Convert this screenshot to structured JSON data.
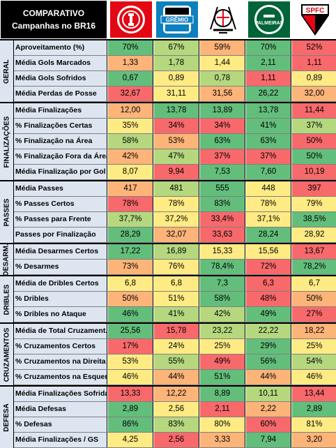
{
  "header": {
    "title_line1": "COMPARATIVO",
    "title_line2": "Campanhas no BR16",
    "teams": [
      {
        "icon": "internacional-crest-icon",
        "text": "",
        "color": "#e30613"
      },
      {
        "icon": "gremio-crest-icon",
        "text": "GRÊMIO",
        "color": "#0d80bf"
      },
      {
        "icon": "corinthians-crest-icon",
        "text": "",
        "color": "#000000"
      },
      {
        "icon": "palmeiras-crest-icon",
        "text": "PALMEIRAS",
        "color": "#006437"
      },
      {
        "icon": "saopaulo-crest-icon",
        "text": "SPFC",
        "color": "#e30613"
      }
    ]
  },
  "colors": {
    "green": "#63be7b",
    "light_green": "#b5d87f",
    "yellow": "#ffeb84",
    "orange": "#fcb479",
    "red": "#f8696b",
    "label_bg": "#dde6f0"
  },
  "sections": [
    {
      "label": "GERAL",
      "rows": [
        {
          "label": "Aproveitamento (%)",
          "values": [
            "70%",
            "67%",
            "59%",
            "70%",
            "52%"
          ],
          "shades": [
            "green",
            "light_green",
            "orange",
            "green",
            "red"
          ]
        },
        {
          "label": "Média Gols Marcados",
          "values": [
            "1,33",
            "1,78",
            "1,44",
            "2,11",
            "1,11"
          ],
          "shades": [
            "orange",
            "light_green",
            "yellow",
            "green",
            "red"
          ]
        },
        {
          "label": "Média Gols Sofridos",
          "values": [
            "0,67",
            "0,89",
            "0,78",
            "1,11",
            "0,89"
          ],
          "shades": [
            "green",
            "yellow",
            "light_green",
            "red",
            "yellow"
          ]
        },
        {
          "label": "Média Perdas de Posse",
          "values": [
            "32,67",
            "31,11",
            "31,56",
            "26,22",
            "32,00"
          ],
          "shades": [
            "red",
            "yellow",
            "orange",
            "green",
            "orange"
          ]
        }
      ]
    },
    {
      "label": "FINALIZAÇÕES",
      "rows": [
        {
          "label": "Média Finalizações",
          "values": [
            "12,00",
            "13,78",
            "13,89",
            "13,78",
            "11,44"
          ],
          "shades": [
            "orange",
            "green",
            "green",
            "green",
            "red"
          ]
        },
        {
          "label": "% Finalizações Certas",
          "values": [
            "35%",
            "34%",
            "34%",
            "41%",
            "37%"
          ],
          "shades": [
            "yellow",
            "red",
            "red",
            "green",
            "light_green"
          ]
        },
        {
          "label": "% Finalização na Área",
          "values": [
            "58%",
            "53%",
            "63%",
            "63%",
            "50%"
          ],
          "shades": [
            "light_green",
            "orange",
            "green",
            "green",
            "red"
          ]
        },
        {
          "label": "% Finalização Fora da Área",
          "values": [
            "42%",
            "47%",
            "37%",
            "37%",
            "50%"
          ],
          "shades": [
            "orange",
            "light_green",
            "red",
            "red",
            "green"
          ]
        },
        {
          "label": "Média Finalização por Gol",
          "values": [
            "8,07",
            "9,94",
            "7,53",
            "7,60",
            "10,19"
          ],
          "shades": [
            "yellow",
            "red",
            "green",
            "green",
            "red"
          ]
        }
      ]
    },
    {
      "label": "PASSES",
      "rows": [
        {
          "label": "Média Passes",
          "values": [
            "417",
            "481",
            "555",
            "448",
            "397"
          ],
          "shades": [
            "orange",
            "light_green",
            "green",
            "yellow",
            "red"
          ]
        },
        {
          "label": "% Passes Certos",
          "values": [
            "78%",
            "78%",
            "83%",
            "78%",
            "79%"
          ],
          "shades": [
            "red",
            "yellow",
            "green",
            "yellow",
            "yellow"
          ]
        },
        {
          "label": "% Passes para Frente",
          "values": [
            "37,7%",
            "37,2%",
            "33,4%",
            "37,1%",
            "38,5%"
          ],
          "shades": [
            "light_green",
            "yellow",
            "red",
            "yellow",
            "green"
          ]
        },
        {
          "label": "Passes por Finalização",
          "values": [
            "28,29",
            "32,07",
            "33,63",
            "28,24",
            "28,92"
          ],
          "shades": [
            "green",
            "orange",
            "red",
            "green",
            "yellow"
          ]
        }
      ]
    },
    {
      "label": "DESARM.",
      "rows": [
        {
          "label": "Média Desarmes Certos",
          "values": [
            "17,22",
            "16,89",
            "15,33",
            "15,56",
            "13,67"
          ],
          "shades": [
            "green",
            "light_green",
            "yellow",
            "yellow",
            "red"
          ]
        },
        {
          "label": "% Desarmes",
          "values": [
            "73%",
            "76%",
            "78,4%",
            "72%",
            "78,2%"
          ],
          "shades": [
            "orange",
            "yellow",
            "green",
            "red",
            "green"
          ]
        }
      ]
    },
    {
      "label": "DRIBLES",
      "rows": [
        {
          "label": "Média de Dribles Certos",
          "values": [
            "6,8",
            "6,8",
            "7,3",
            "6,3",
            "6,7"
          ],
          "shades": [
            "yellow",
            "yellow",
            "green",
            "red",
            "yellow"
          ]
        },
        {
          "label": "% Dribles",
          "values": [
            "50%",
            "51%",
            "58%",
            "48%",
            "50%"
          ],
          "shades": [
            "orange",
            "yellow",
            "green",
            "red",
            "orange"
          ]
        },
        {
          "label": "% Dribles no Ataque",
          "values": [
            "46%",
            "41%",
            "42%",
            "49%",
            "27%"
          ],
          "shades": [
            "green",
            "light_green",
            "light_green",
            "green",
            "red"
          ]
        }
      ]
    },
    {
      "label": "CRUZAMENTOS",
      "rows": [
        {
          "label": "Média de Total Cruzament.",
          "values": [
            "25,56",
            "15,78",
            "23,22",
            "22,22",
            "18,22"
          ],
          "shades": [
            "green",
            "red",
            "light_green",
            "light_green",
            "orange"
          ]
        },
        {
          "label": "% Cruzamentos Certos",
          "values": [
            "17%",
            "24%",
            "25%",
            "29%",
            "25%"
          ],
          "shades": [
            "red",
            "yellow",
            "yellow",
            "green",
            "yellow"
          ]
        },
        {
          "label": "% Cruzamentos na Direita",
          "values": [
            "53%",
            "55%",
            "49%",
            "56%",
            "54%"
          ],
          "shades": [
            "yellow",
            "light_green",
            "red",
            "green",
            "light_green"
          ]
        },
        {
          "label": "% Cruzamentos na Esquerda",
          "values": [
            "46%",
            "44%",
            "51%",
            "44%",
            "46%"
          ],
          "shades": [
            "yellow",
            "orange",
            "green",
            "orange",
            "yellow"
          ]
        }
      ]
    },
    {
      "label": "DEFESA",
      "rows": [
        {
          "label": "Média Finalizações Sofridas",
          "values": [
            "13,33",
            "12,22",
            "8,89",
            "10,11",
            "13,44"
          ],
          "shades": [
            "red",
            "orange",
            "green",
            "light_green",
            "red"
          ]
        },
        {
          "label": "Média Defesas",
          "values": [
            "2,89",
            "2,56",
            "2,11",
            "2,22",
            "2,89"
          ],
          "shades": [
            "green",
            "yellow",
            "red",
            "orange",
            "green"
          ]
        },
        {
          "label": "% Defesas",
          "values": [
            "86%",
            "83%",
            "80%",
            "60%",
            "81%"
          ],
          "shades": [
            "green",
            "light_green",
            "yellow",
            "red",
            "yellow"
          ]
        },
        {
          "label": "Média Finalizações / GS",
          "values": [
            "4,25",
            "2,56",
            "3,33",
            "7,94",
            "3,20"
          ],
          "shades": [
            "yellow",
            "red",
            "orange",
            "green",
            "orange"
          ]
        }
      ]
    }
  ]
}
